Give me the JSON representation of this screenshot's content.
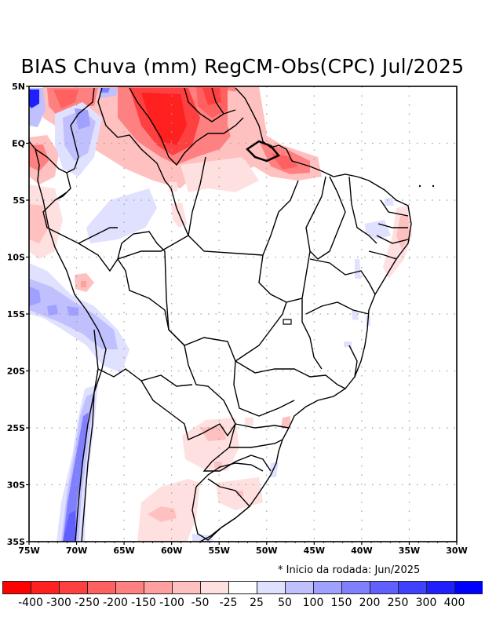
{
  "chart_data": {
    "type": "heatmap",
    "title": "BIAS Chuva (mm) RegCM-Obs(CPC) Jul/2025",
    "subtitle": "* Inicio da rodada: Jun/2025",
    "xlabel": "",
    "ylabel": "",
    "xlim": [
      -75,
      -30
    ],
    "ylim": [
      -35,
      5
    ],
    "grid": true,
    "x_ticks": [
      {
        "value": -75,
        "label": "75W"
      },
      {
        "value": -70,
        "label": "70W"
      },
      {
        "value": -65,
        "label": "65W"
      },
      {
        "value": -60,
        "label": "60W"
      },
      {
        "value": -55,
        "label": "55W"
      },
      {
        "value": -50,
        "label": "50W"
      },
      {
        "value": -45,
        "label": "45W"
      },
      {
        "value": -40,
        "label": "40W"
      },
      {
        "value": -35,
        "label": "35W"
      },
      {
        "value": -30,
        "label": "30W"
      }
    ],
    "y_ticks": [
      {
        "value": 5,
        "label": "5N"
      },
      {
        "value": 0,
        "label": "EQ"
      },
      {
        "value": -5,
        "label": "5S"
      },
      {
        "value": -10,
        "label": "10S"
      },
      {
        "value": -15,
        "label": "15S"
      },
      {
        "value": -20,
        "label": "20S"
      },
      {
        "value": -25,
        "label": "25S"
      },
      {
        "value": -30,
        "label": "30S"
      },
      {
        "value": -35,
        "label": "35S"
      }
    ],
    "colorbar": {
      "labels": [
        "-400",
        "-300",
        "-250",
        "-200",
        "-150",
        "-100",
        "-50",
        "-25",
        "25",
        "50",
        "100",
        "150",
        "200",
        "250",
        "300",
        "400"
      ],
      "colors": [
        "#ff0000",
        "#ff2020",
        "#ff4040",
        "#ff6060",
        "#ff8080",
        "#ffa0a0",
        "#ffc0c0",
        "#ffe0e0",
        "#ffffff",
        "#e0e0ff",
        "#c0c0ff",
        "#a0a0ff",
        "#8080ff",
        "#6060ff",
        "#4040ff",
        "#2020ff",
        "#0000ff"
      ]
    },
    "regions": [
      {
        "name": "north-amazon-deficit",
        "lon": -61,
        "lat": 3,
        "bias_class": -300
      },
      {
        "name": "guiana-deficit",
        "lon": -55,
        "lat": 3.5,
        "bias_class": -200
      },
      {
        "name": "amapa-para-coast-deficit",
        "lon": -49,
        "lat": -1.5,
        "bias_class": -150
      },
      {
        "name": "colombia-north-deficit",
        "lon": -70,
        "lat": 3.5,
        "bias_class": -200
      },
      {
        "name": "ecuador-peru-deficit",
        "lon": -74,
        "lat": -1,
        "bias_class": -100
      },
      {
        "name": "colombia-surplus",
        "lon": -69.5,
        "lat": 1,
        "bias_class": 100
      },
      {
        "name": "colombia-nw-surplus",
        "lon": -74.5,
        "lat": 4,
        "bias_class": 300
      },
      {
        "name": "amazon-west-surplus",
        "lon": -64,
        "lat": -7,
        "bias_class": 25
      },
      {
        "name": "andes-peru-bolivia-surplus",
        "lon": -72,
        "lat": -14,
        "bias_class": 100
      },
      {
        "name": "chile-central-surplus",
        "lon": -71,
        "lat": -32,
        "bias_class": 250
      },
      {
        "name": "paraguay-misiones-deficit",
        "lon": -55,
        "lat": -26,
        "bias_class": -50
      },
      {
        "name": "argentina-pampa-deficit",
        "lon": -61,
        "lat": -32,
        "bias_class": -50
      },
      {
        "name": "rs-deficit",
        "lon": -52,
        "lat": -29.5,
        "bias_class": -50
      },
      {
        "name": "northeast-coast-deficit",
        "lon": -35.5,
        "lat": -8,
        "bias_class": -50
      },
      {
        "name": "northeast-interior-surplus",
        "lon": -38,
        "lat": -7,
        "bias_class": 25
      }
    ]
  }
}
